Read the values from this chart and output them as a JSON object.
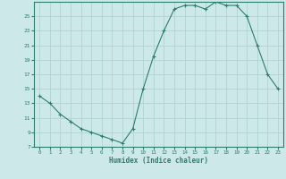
{
  "title": "",
  "xlabel": "Humidex (Indice chaleur)",
  "x_data": [
    0,
    1,
    2,
    3,
    4,
    5,
    6,
    7,
    8,
    9,
    10,
    11,
    12,
    13,
    14,
    15,
    16,
    17,
    18,
    19,
    20,
    21,
    22,
    23
  ],
  "y_data": [
    14,
    13,
    11.5,
    10.5,
    9.5,
    9,
    8.5,
    8,
    7.5,
    9.5,
    15,
    19.5,
    23,
    26,
    26.5,
    26.5,
    26,
    27,
    26.5,
    26.5,
    25,
    21,
    17,
    15
  ],
  "line_color": "#2e7d6e",
  "marker": "+",
  "bg_color": "#cce8e8",
  "grid_color": "#aacfcf",
  "ylim": [
    7,
    27
  ],
  "yticks": [
    7,
    9,
    11,
    13,
    15,
    17,
    19,
    21,
    23,
    25
  ],
  "xticks": [
    0,
    1,
    2,
    3,
    4,
    5,
    6,
    7,
    8,
    9,
    10,
    11,
    12,
    13,
    14,
    15,
    16,
    17,
    18,
    19,
    20,
    21,
    22,
    23
  ],
  "xlim": [
    -0.5,
    23.5
  ]
}
